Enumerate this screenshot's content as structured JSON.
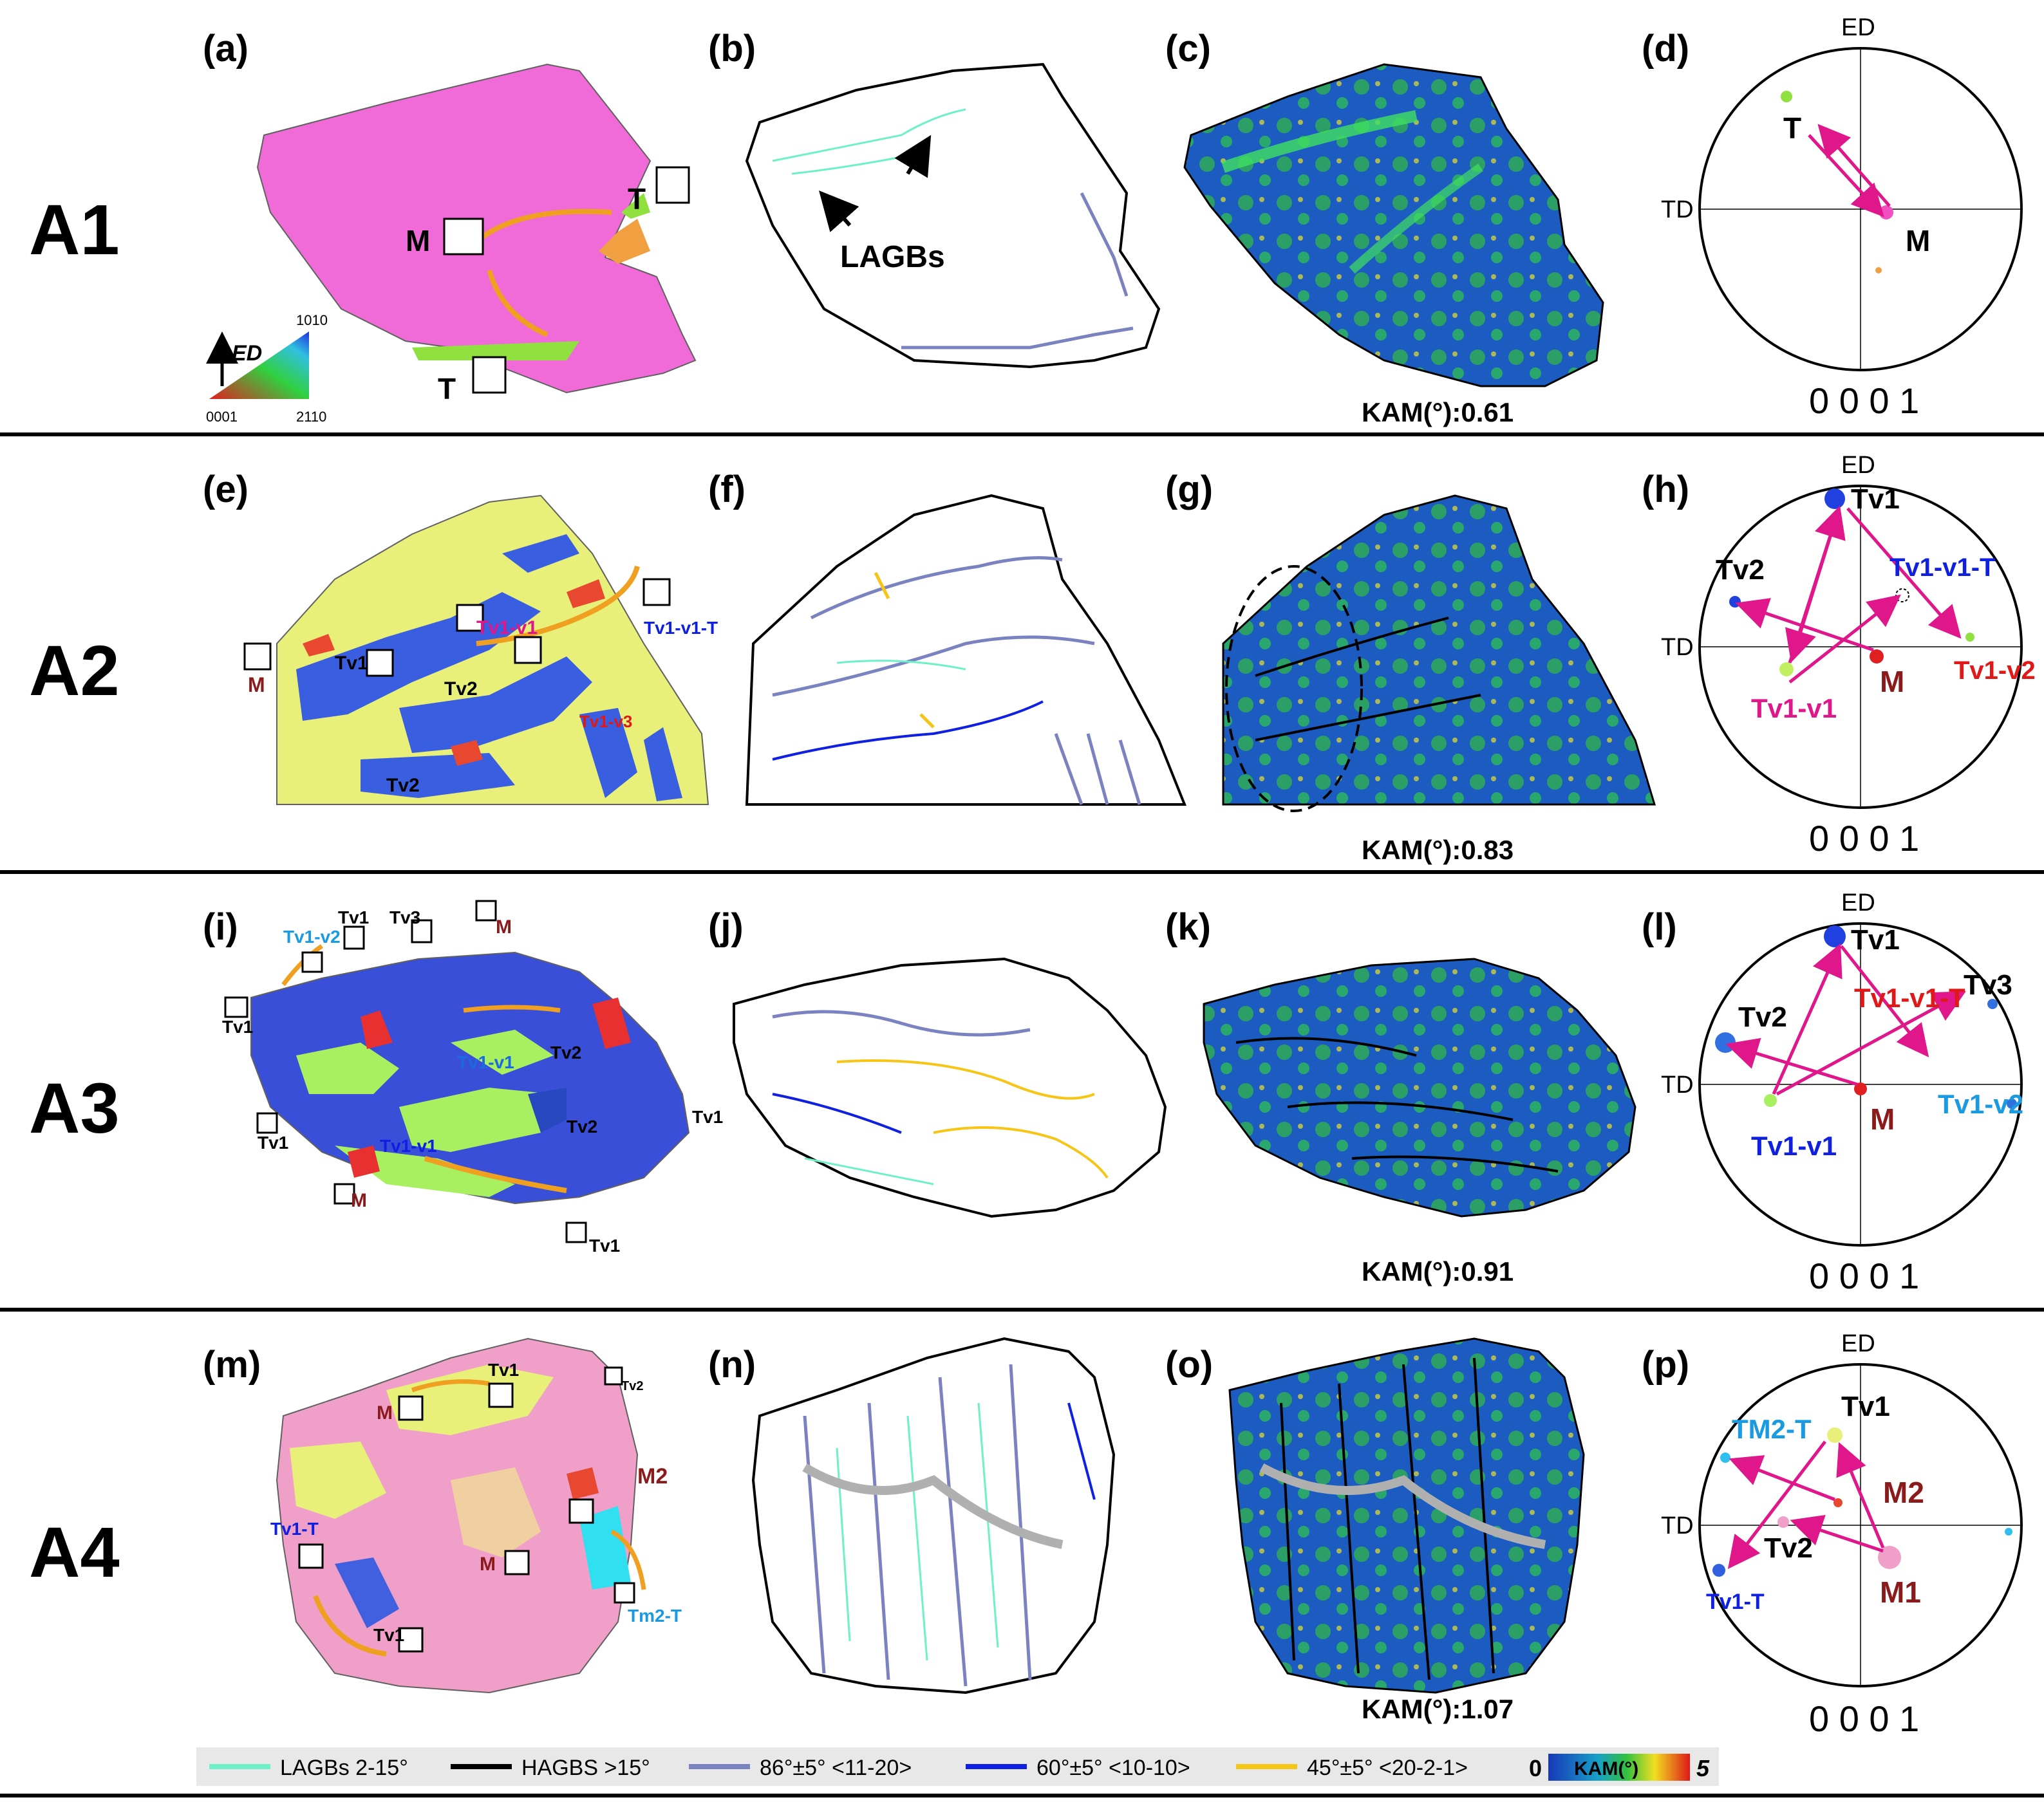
{
  "rows": [
    {
      "label": "A1",
      "panels": [
        "(a)",
        "(b)",
        "(c)",
        "(d)"
      ],
      "kam": "KAM(°):0.61",
      "map_labels": [
        "T",
        "M",
        "T"
      ],
      "boundary_label": "LAGBs",
      "pole": {
        "top": "ED",
        "left": "TD",
        "bottom": "0 0 0 1",
        "labels": [
          "T",
          "M"
        ]
      },
      "map_color": "#f06ad8"
    },
    {
      "label": "A2",
      "panels": [
        "(e)",
        "(f)",
        "(g)",
        "(h)"
      ],
      "kam": "KAM(°):0.83",
      "map_labels": [
        "M",
        "Tv1",
        "Tv1-v1",
        "Tv2",
        "Tv1-v3",
        "Tv2",
        "Tv1-v1-T"
      ],
      "pole": {
        "top": "ED",
        "left": "TD",
        "bottom": "0 0 0 1",
        "labels": [
          "Tv1",
          "Tv2",
          "Tv1-v1-T",
          "Tv1-v1",
          "M",
          "Tv1-v2"
        ]
      },
      "map_color": "#e8f07a"
    },
    {
      "label": "A3",
      "panels": [
        "(i)",
        "(j)",
        "(k)",
        "(l)"
      ],
      "kam": "KAM(°):0.91",
      "map_labels": [
        "Tv1-v2",
        "Tv1",
        "Tv3",
        "M",
        "Tv1",
        "Tv2",
        "Tv1-v1",
        "Tv1",
        "Tv2",
        "Tv1-v1",
        "Tv1",
        "M",
        "Tv1"
      ],
      "pole": {
        "top": "ED",
        "left": "TD",
        "bottom": "0 0 0 1",
        "labels": [
          "Tv1",
          "Tv2",
          "Tv1-v1-T",
          "Tv3",
          "M",
          "Tv1-v2",
          "Tv1-v1"
        ]
      },
      "map_color": "#3a4fd8"
    },
    {
      "label": "A4",
      "panels": [
        "(m)",
        "(n)",
        "(o)",
        "(p)"
      ],
      "kam": "KAM(°):1.07",
      "map_labels": [
        "M",
        "Tv1",
        "Tv2",
        "M2",
        "Tv1-T",
        "M",
        "Tv1",
        "Tm2-T"
      ],
      "pole": {
        "top": "ED",
        "left": "TD",
        "bottom": "0 0 0 1",
        "labels": [
          "Tv1",
          "TM2-T",
          "M2",
          "Tv2",
          "Tv1-T",
          "M1"
        ]
      },
      "map_color": "#f0a0c8"
    }
  ],
  "ipf_key": {
    "axis": "ED",
    "corner_left": "0001",
    "corner_right": "2110",
    "corner_top": "1010"
  },
  "legend": [
    {
      "label": "LAGBs  2-15°",
      "color": "#6ef0c8"
    },
    {
      "label": "HAGBS  >15°",
      "color": "#000000"
    },
    {
      "label": "86°±5° <11-20>",
      "color": "#7a82c0"
    },
    {
      "label": "60°±5° <10-10>",
      "color": "#1020e0"
    },
    {
      "label": "45°±5° <20-2-1>",
      "color": "#f5c518"
    }
  ],
  "kam_scale": {
    "min": "0",
    "title": "KAM(°)",
    "max": "5"
  },
  "colors": {
    "arrow": "#e0178a",
    "orange_arrow": "#f0a020",
    "kam_blue": "#1838b8",
    "kam_green": "#30c040"
  }
}
